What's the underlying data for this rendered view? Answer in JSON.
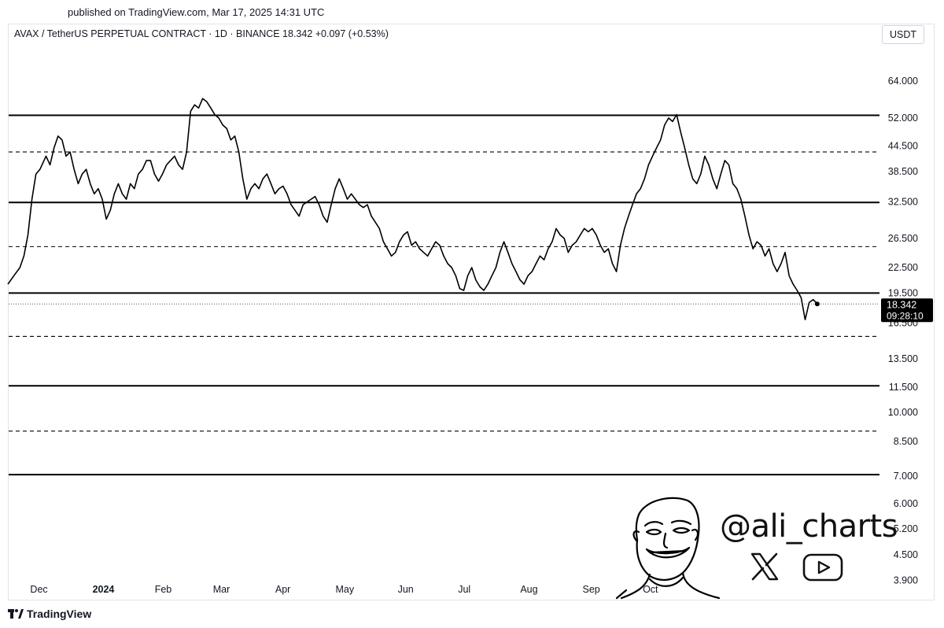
{
  "header": {
    "published": "published on TradingView.com, Mar 17, 2025 14:31 UTC",
    "symbol_line": "AVAX / TetherUS PERPETUAL CONTRACT · 1D · BINANCE  18.342  +0.097 (+0.53%)",
    "currency": "USDT"
  },
  "footer": {
    "brand": "TradingView"
  },
  "watermark": {
    "handle": "@ali_charts",
    "icons": [
      "x-logo-icon",
      "youtube-icon",
      "cartoon-avatar"
    ]
  },
  "colors": {
    "line": "#000000",
    "price_label_bg": "#000000",
    "price_label_text": "#ffffff",
    "border": "#e0e3eb"
  },
  "chart_data": {
    "type": "line",
    "title": "AVAX / TetherUS PERPETUAL CONTRACT · 1D · BINANCE",
    "y_scale": "log",
    "ylim": [
      3.5,
      78
    ],
    "y_ticks": [
      "64.000",
      "52.000",
      "44.500",
      "38.500",
      "32.500",
      "26.500",
      "22.500",
      "19.500",
      "16.500",
      "13.500",
      "11.500",
      "10.000",
      "8.500",
      "7.000",
      "6.000",
      "5.200",
      "4.500",
      "3.900"
    ],
    "y_tick_values": [
      64,
      52,
      44.5,
      38.5,
      32.5,
      26.5,
      22.5,
      19.5,
      16.5,
      13.5,
      11.5,
      10,
      8.5,
      7,
      6,
      5.2,
      4.5,
      3.9
    ],
    "x_ticks": [
      {
        "label": "Dec",
        "date": "2023-12-01",
        "bold": false
      },
      {
        "label": "2024",
        "date": "2024-01-01",
        "bold": true
      },
      {
        "label": "Feb",
        "date": "2024-02-01",
        "bold": false
      },
      {
        "label": "Mar",
        "date": "2024-03-01",
        "bold": false
      },
      {
        "label": "Apr",
        "date": "2024-04-01",
        "bold": false
      },
      {
        "label": "May",
        "date": "2024-05-01",
        "bold": false
      },
      {
        "label": "Jun",
        "date": "2024-06-01",
        "bold": false
      },
      {
        "label": "Jul",
        "date": "2024-07-01",
        "bold": false
      },
      {
        "label": "Aug",
        "date": "2024-08-01",
        "bold": false
      },
      {
        "label": "Sep",
        "date": "2024-09-01",
        "bold": false
      },
      {
        "label": "Oct",
        "date": "2024-10-01",
        "bold": false
      }
    ],
    "last_price": {
      "value": 18.342,
      "label": "18.342",
      "countdown": "09:28:10"
    },
    "horizontal_levels": [
      {
        "value": 52.8,
        "style": "solid"
      },
      {
        "value": 43.0,
        "style": "dashed"
      },
      {
        "value": 32.4,
        "style": "solid"
      },
      {
        "value": 25.3,
        "style": "dashed"
      },
      {
        "value": 19.5,
        "style": "solid"
      },
      {
        "value": 18.342,
        "style": "dotted"
      },
      {
        "value": 15.3,
        "style": "dashed"
      },
      {
        "value": 11.6,
        "style": "solid"
      },
      {
        "value": 9.0,
        "style": "dashed"
      },
      {
        "value": 7.05,
        "style": "solid"
      }
    ],
    "series": [
      {
        "points": [
          [
            "2023-11-23",
            20.5
          ],
          [
            "2023-11-26",
            21.5
          ],
          [
            "2023-11-29",
            22.5
          ],
          [
            "2023-12-01",
            24.0
          ],
          [
            "2023-12-03",
            27.0
          ],
          [
            "2023-12-05",
            33.0
          ],
          [
            "2023-12-07",
            38.0
          ],
          [
            "2023-12-09",
            39.0
          ],
          [
            "2023-12-12",
            42.0
          ],
          [
            "2023-12-14",
            40.0
          ],
          [
            "2023-12-16",
            44.0
          ],
          [
            "2023-12-18",
            47.0
          ],
          [
            "2023-12-20",
            46.0
          ],
          [
            "2023-12-22",
            42.0
          ],
          [
            "2023-12-24",
            43.0
          ],
          [
            "2023-12-26",
            39.0
          ],
          [
            "2023-12-28",
            36.0
          ],
          [
            "2023-12-30",
            38.0
          ],
          [
            "2024-01-01",
            39.0
          ],
          [
            "2024-01-03",
            36.0
          ],
          [
            "2024-01-05",
            34.0
          ],
          [
            "2024-01-07",
            35.0
          ],
          [
            "2024-01-09",
            33.0
          ],
          [
            "2024-01-11",
            29.5
          ],
          [
            "2024-01-13",
            31.0
          ],
          [
            "2024-01-15",
            34.0
          ],
          [
            "2024-01-17",
            36.0
          ],
          [
            "2024-01-19",
            34.0
          ],
          [
            "2024-01-21",
            33.0
          ],
          [
            "2024-01-23",
            36.0
          ],
          [
            "2024-01-25",
            35.0
          ],
          [
            "2024-01-27",
            38.0
          ],
          [
            "2024-01-29",
            39.0
          ],
          [
            "2024-01-31",
            41.0
          ],
          [
            "2024-02-02",
            41.0
          ],
          [
            "2024-02-04",
            38.0
          ],
          [
            "2024-02-06",
            36.5
          ],
          [
            "2024-02-08",
            38.0
          ],
          [
            "2024-02-10",
            40.0
          ],
          [
            "2024-02-12",
            41.0
          ],
          [
            "2024-02-14",
            42.0
          ],
          [
            "2024-02-16",
            40.0
          ],
          [
            "2024-02-18",
            39.0
          ],
          [
            "2024-02-20",
            43.0
          ],
          [
            "2024-02-22",
            54.0
          ],
          [
            "2024-02-24",
            56.0
          ],
          [
            "2024-02-26",
            55.0
          ],
          [
            "2024-02-28",
            58.0
          ],
          [
            "2024-03-01",
            57.0
          ],
          [
            "2024-03-03",
            55.0
          ],
          [
            "2024-03-05",
            53.0
          ],
          [
            "2024-03-07",
            52.0
          ],
          [
            "2024-03-09",
            50.0
          ],
          [
            "2024-03-11",
            49.0
          ],
          [
            "2024-03-13",
            46.0
          ],
          [
            "2024-03-15",
            47.0
          ],
          [
            "2024-03-17",
            43.0
          ],
          [
            "2024-03-19",
            37.0
          ],
          [
            "2024-03-21",
            33.0
          ],
          [
            "2024-03-23",
            35.0
          ],
          [
            "2024-03-25",
            36.0
          ],
          [
            "2024-03-27",
            35.0
          ],
          [
            "2024-03-29",
            37.0
          ],
          [
            "2024-03-31",
            38.0
          ],
          [
            "2024-04-02",
            36.0
          ],
          [
            "2024-04-04",
            34.0
          ],
          [
            "2024-04-06",
            35.0
          ],
          [
            "2024-04-08",
            35.5
          ],
          [
            "2024-04-10",
            34.0
          ],
          [
            "2024-04-12",
            32.0
          ],
          [
            "2024-04-14",
            31.0
          ],
          [
            "2024-04-16",
            30.0
          ],
          [
            "2024-04-18",
            32.0
          ],
          [
            "2024-04-20",
            32.5
          ],
          [
            "2024-04-22",
            33.0
          ],
          [
            "2024-04-24",
            33.5
          ],
          [
            "2024-04-26",
            32.0
          ],
          [
            "2024-04-28",
            30.0
          ],
          [
            "2024-04-30",
            29.0
          ],
          [
            "2024-05-02",
            32.0
          ],
          [
            "2024-05-04",
            35.0
          ],
          [
            "2024-05-06",
            37.0
          ],
          [
            "2024-05-08",
            35.0
          ],
          [
            "2024-05-10",
            33.0
          ],
          [
            "2024-05-12",
            34.0
          ],
          [
            "2024-05-14",
            33.0
          ],
          [
            "2024-05-16",
            32.0
          ],
          [
            "2024-05-18",
            31.5
          ],
          [
            "2024-05-20",
            32.0
          ],
          [
            "2024-05-22",
            30.0
          ],
          [
            "2024-05-24",
            29.0
          ],
          [
            "2024-05-26",
            28.0
          ],
          [
            "2024-05-28",
            26.0
          ],
          [
            "2024-05-30",
            25.0
          ],
          [
            "2024-06-01",
            24.0
          ],
          [
            "2024-06-03",
            24.5
          ],
          [
            "2024-06-05",
            26.0
          ],
          [
            "2024-06-07",
            27.0
          ],
          [
            "2024-06-09",
            27.5
          ],
          [
            "2024-06-11",
            25.5
          ],
          [
            "2024-06-13",
            26.0
          ],
          [
            "2024-06-15",
            25.0
          ],
          [
            "2024-06-17",
            24.5
          ],
          [
            "2024-06-19",
            24.0
          ],
          [
            "2024-06-21",
            25.0
          ],
          [
            "2024-06-23",
            26.0
          ],
          [
            "2024-06-25",
            25.5
          ],
          [
            "2024-06-27",
            24.0
          ],
          [
            "2024-06-29",
            23.0
          ],
          [
            "2024-07-01",
            22.5
          ],
          [
            "2024-07-03",
            21.5
          ],
          [
            "2024-07-05",
            20.0
          ],
          [
            "2024-07-07",
            19.8
          ],
          [
            "2024-07-09",
            21.5
          ],
          [
            "2024-07-11",
            22.5
          ],
          [
            "2024-07-13",
            21.0
          ],
          [
            "2024-07-15",
            20.2
          ],
          [
            "2024-07-17",
            19.8
          ],
          [
            "2024-07-19",
            20.5
          ],
          [
            "2024-07-21",
            21.5
          ],
          [
            "2024-07-23",
            22.5
          ],
          [
            "2024-07-25",
            24.5
          ],
          [
            "2024-07-27",
            26.0
          ],
          [
            "2024-07-29",
            24.5
          ],
          [
            "2024-07-31",
            23.0
          ],
          [
            "2024-08-02",
            22.0
          ],
          [
            "2024-08-04",
            21.0
          ],
          [
            "2024-08-06",
            20.5
          ],
          [
            "2024-08-08",
            21.5
          ],
          [
            "2024-08-10",
            22.0
          ],
          [
            "2024-08-12",
            23.0
          ],
          [
            "2024-08-14",
            24.0
          ],
          [
            "2024-08-16",
            23.5
          ],
          [
            "2024-08-18",
            25.0
          ],
          [
            "2024-08-20",
            26.0
          ],
          [
            "2024-08-22",
            28.0
          ],
          [
            "2024-08-24",
            27.0
          ],
          [
            "2024-08-26",
            26.5
          ],
          [
            "2024-08-28",
            24.5
          ],
          [
            "2024-08-30",
            25.5
          ],
          [
            "2024-09-01",
            26.0
          ],
          [
            "2024-09-03",
            27.0
          ],
          [
            "2024-09-05",
            28.0
          ],
          [
            "2024-09-07",
            27.5
          ],
          [
            "2024-09-09",
            28.0
          ],
          [
            "2024-09-11",
            27.0
          ],
          [
            "2024-09-13",
            25.5
          ],
          [
            "2024-09-15",
            24.5
          ],
          [
            "2024-09-17",
            25.0
          ],
          [
            "2024-09-19",
            23.0
          ],
          [
            "2024-09-21",
            22.0
          ],
          [
            "2024-09-23",
            25.5
          ],
          [
            "2024-09-25",
            28.0
          ],
          [
            "2024-09-27",
            30.0
          ],
          [
            "2024-09-29",
            32.0
          ],
          [
            "2024-10-01",
            34.0
          ],
          [
            "2024-10-03",
            35.0
          ],
          [
            "2024-10-05",
            37.0
          ],
          [
            "2024-10-07",
            40.0
          ],
          [
            "2024-10-09",
            42.0
          ],
          [
            "2024-10-11",
            44.0
          ],
          [
            "2024-10-13",
            46.0
          ],
          [
            "2024-10-15",
            50.0
          ],
          [
            "2024-10-17",
            52.0
          ],
          [
            "2024-10-19",
            51.0
          ],
          [
            "2024-10-21",
            53.0
          ],
          [
            "2024-10-23",
            48.0
          ],
          [
            "2024-10-25",
            44.0
          ],
          [
            "2024-10-27",
            40.0
          ],
          [
            "2024-10-29",
            37.0
          ],
          [
            "2024-10-31",
            36.0
          ],
          [
            "2024-11-02",
            38.0
          ],
          [
            "2024-11-04",
            42.0
          ],
          [
            "2024-11-06",
            40.0
          ],
          [
            "2024-11-08",
            37.0
          ],
          [
            "2024-11-10",
            35.0
          ],
          [
            "2024-11-12",
            38.0
          ],
          [
            "2024-11-14",
            41.0
          ],
          [
            "2024-11-16",
            40.0
          ],
          [
            "2024-11-18",
            36.0
          ],
          [
            "2024-11-20",
            35.0
          ],
          [
            "2024-11-22",
            33.0
          ],
          [
            "2024-11-24",
            30.0
          ],
          [
            "2024-11-26",
            27.0
          ],
          [
            "2024-11-28",
            25.0
          ],
          [
            "2024-11-30",
            26.0
          ],
          [
            "2024-12-02",
            25.5
          ],
          [
            "2024-12-04",
            24.0
          ],
          [
            "2024-12-06",
            25.0
          ],
          [
            "2024-12-08",
            23.0
          ],
          [
            "2024-12-10",
            22.0
          ],
          [
            "2024-12-12",
            23.0
          ],
          [
            "2024-12-14",
            24.5
          ],
          [
            "2024-12-16",
            21.5
          ],
          [
            "2024-12-18",
            20.5
          ],
          [
            "2024-12-20",
            19.8
          ],
          [
            "2024-12-22",
            19.0
          ],
          [
            "2024-12-24",
            16.8
          ],
          [
            "2024-12-26",
            18.5
          ],
          [
            "2024-12-28",
            18.8
          ],
          [
            "2024-12-30",
            18.342
          ]
        ]
      }
    ]
  }
}
